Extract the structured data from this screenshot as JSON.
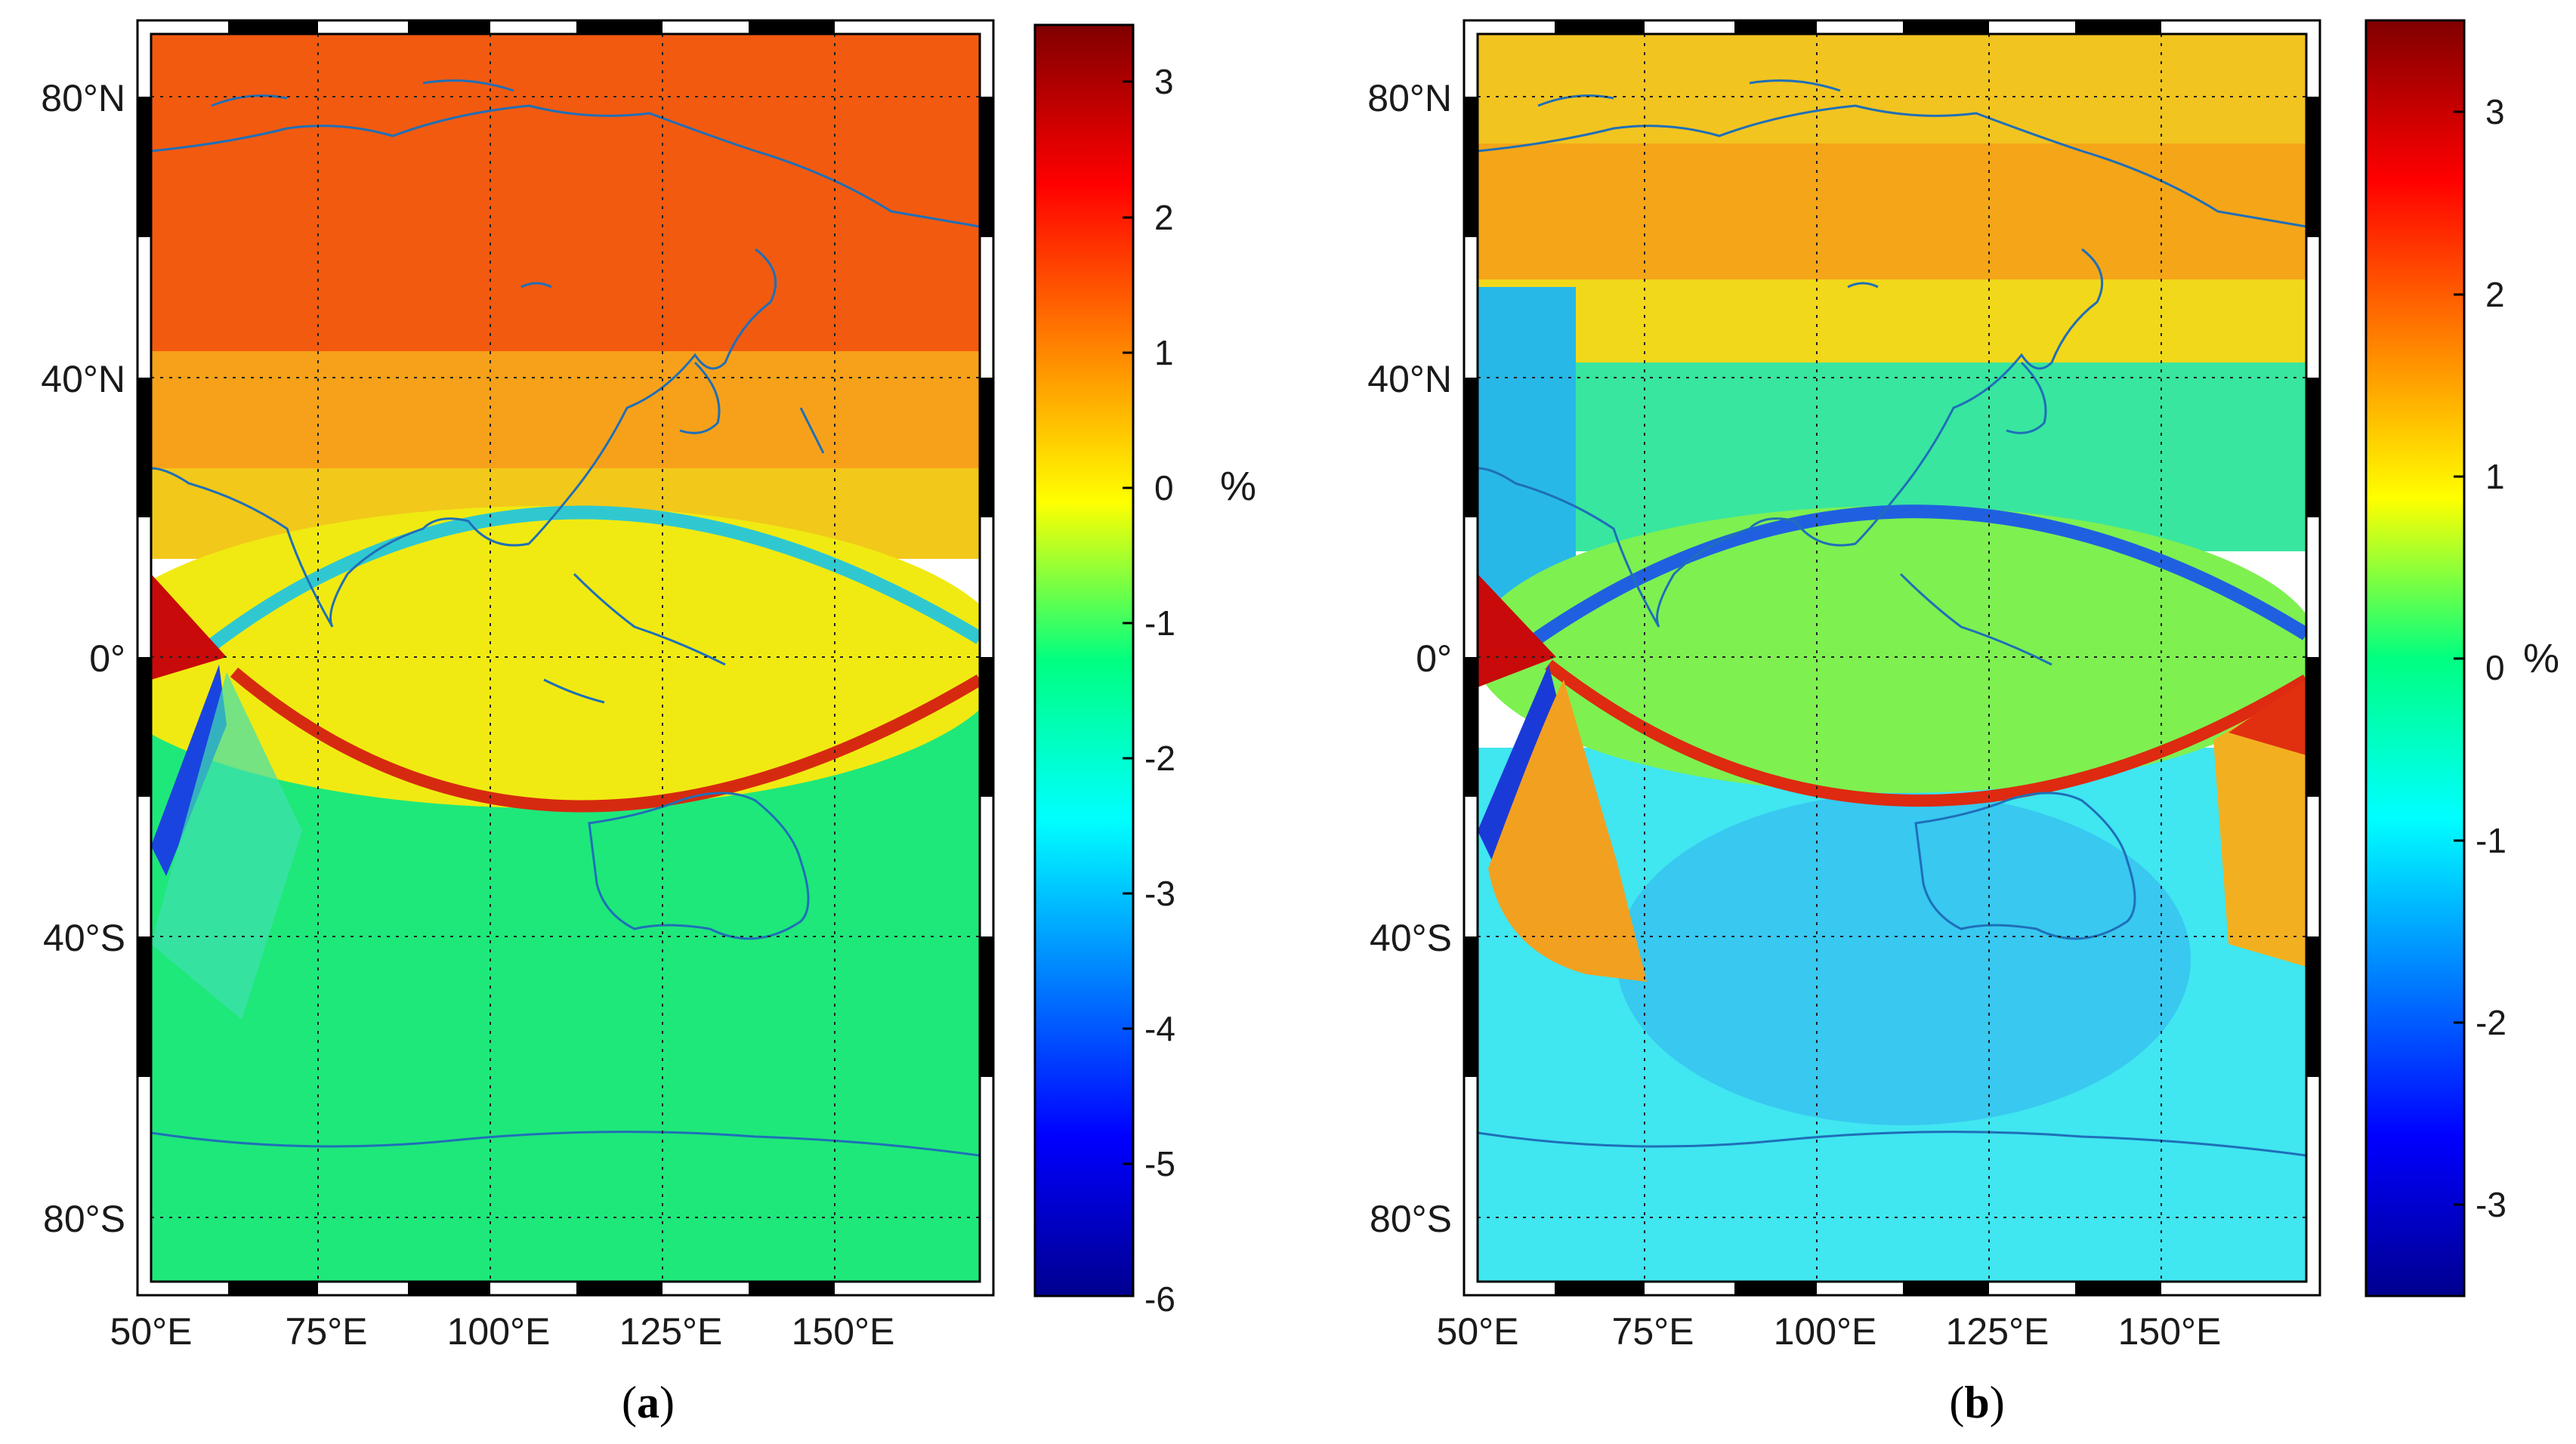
{
  "figure": {
    "panels": [
      {
        "caption_letter": "a",
        "lat_labels": [
          "80°N",
          "40°N",
          "0°",
          "40°S",
          "80°S"
        ],
        "lon_labels": [
          "50°E",
          "75°E",
          "100°E",
          "125°E",
          "150°E"
        ],
        "colorbar": {
          "ticks": [
            "3",
            "2",
            "1",
            "0",
            "-1",
            "-2",
            "-3",
            "-4",
            "-5",
            "-6"
          ],
          "min": -6,
          "max": 3.4,
          "unit": "%"
        },
        "field": {
          "north_value": 1.8,
          "ring_value": -0.1,
          "south_value": -1.4,
          "band_dip": -3.4,
          "band_peak": 2.8
        }
      },
      {
        "caption_letter": "b",
        "lat_labels": [
          "80°N",
          "40°N",
          "0°",
          "40°S",
          "80°S"
        ],
        "lon_labels": [
          "50°E",
          "75°E",
          "100°E",
          "125°E",
          "150°E"
        ],
        "colorbar": {
          "ticks": [
            "3",
            "2",
            "1",
            "0",
            "-1",
            "-2",
            "-3"
          ],
          "min": -3.5,
          "max": 3.5,
          "unit": "%"
        },
        "field": {
          "north_value": 1.0,
          "ring_value": 0.0,
          "south_value": -0.8,
          "band_dip": -2.8,
          "band_peak": 2.6
        }
      }
    ],
    "colors": {
      "coast": "#1f6fb8",
      "grid": "#222222",
      "frame": "#000000"
    }
  }
}
